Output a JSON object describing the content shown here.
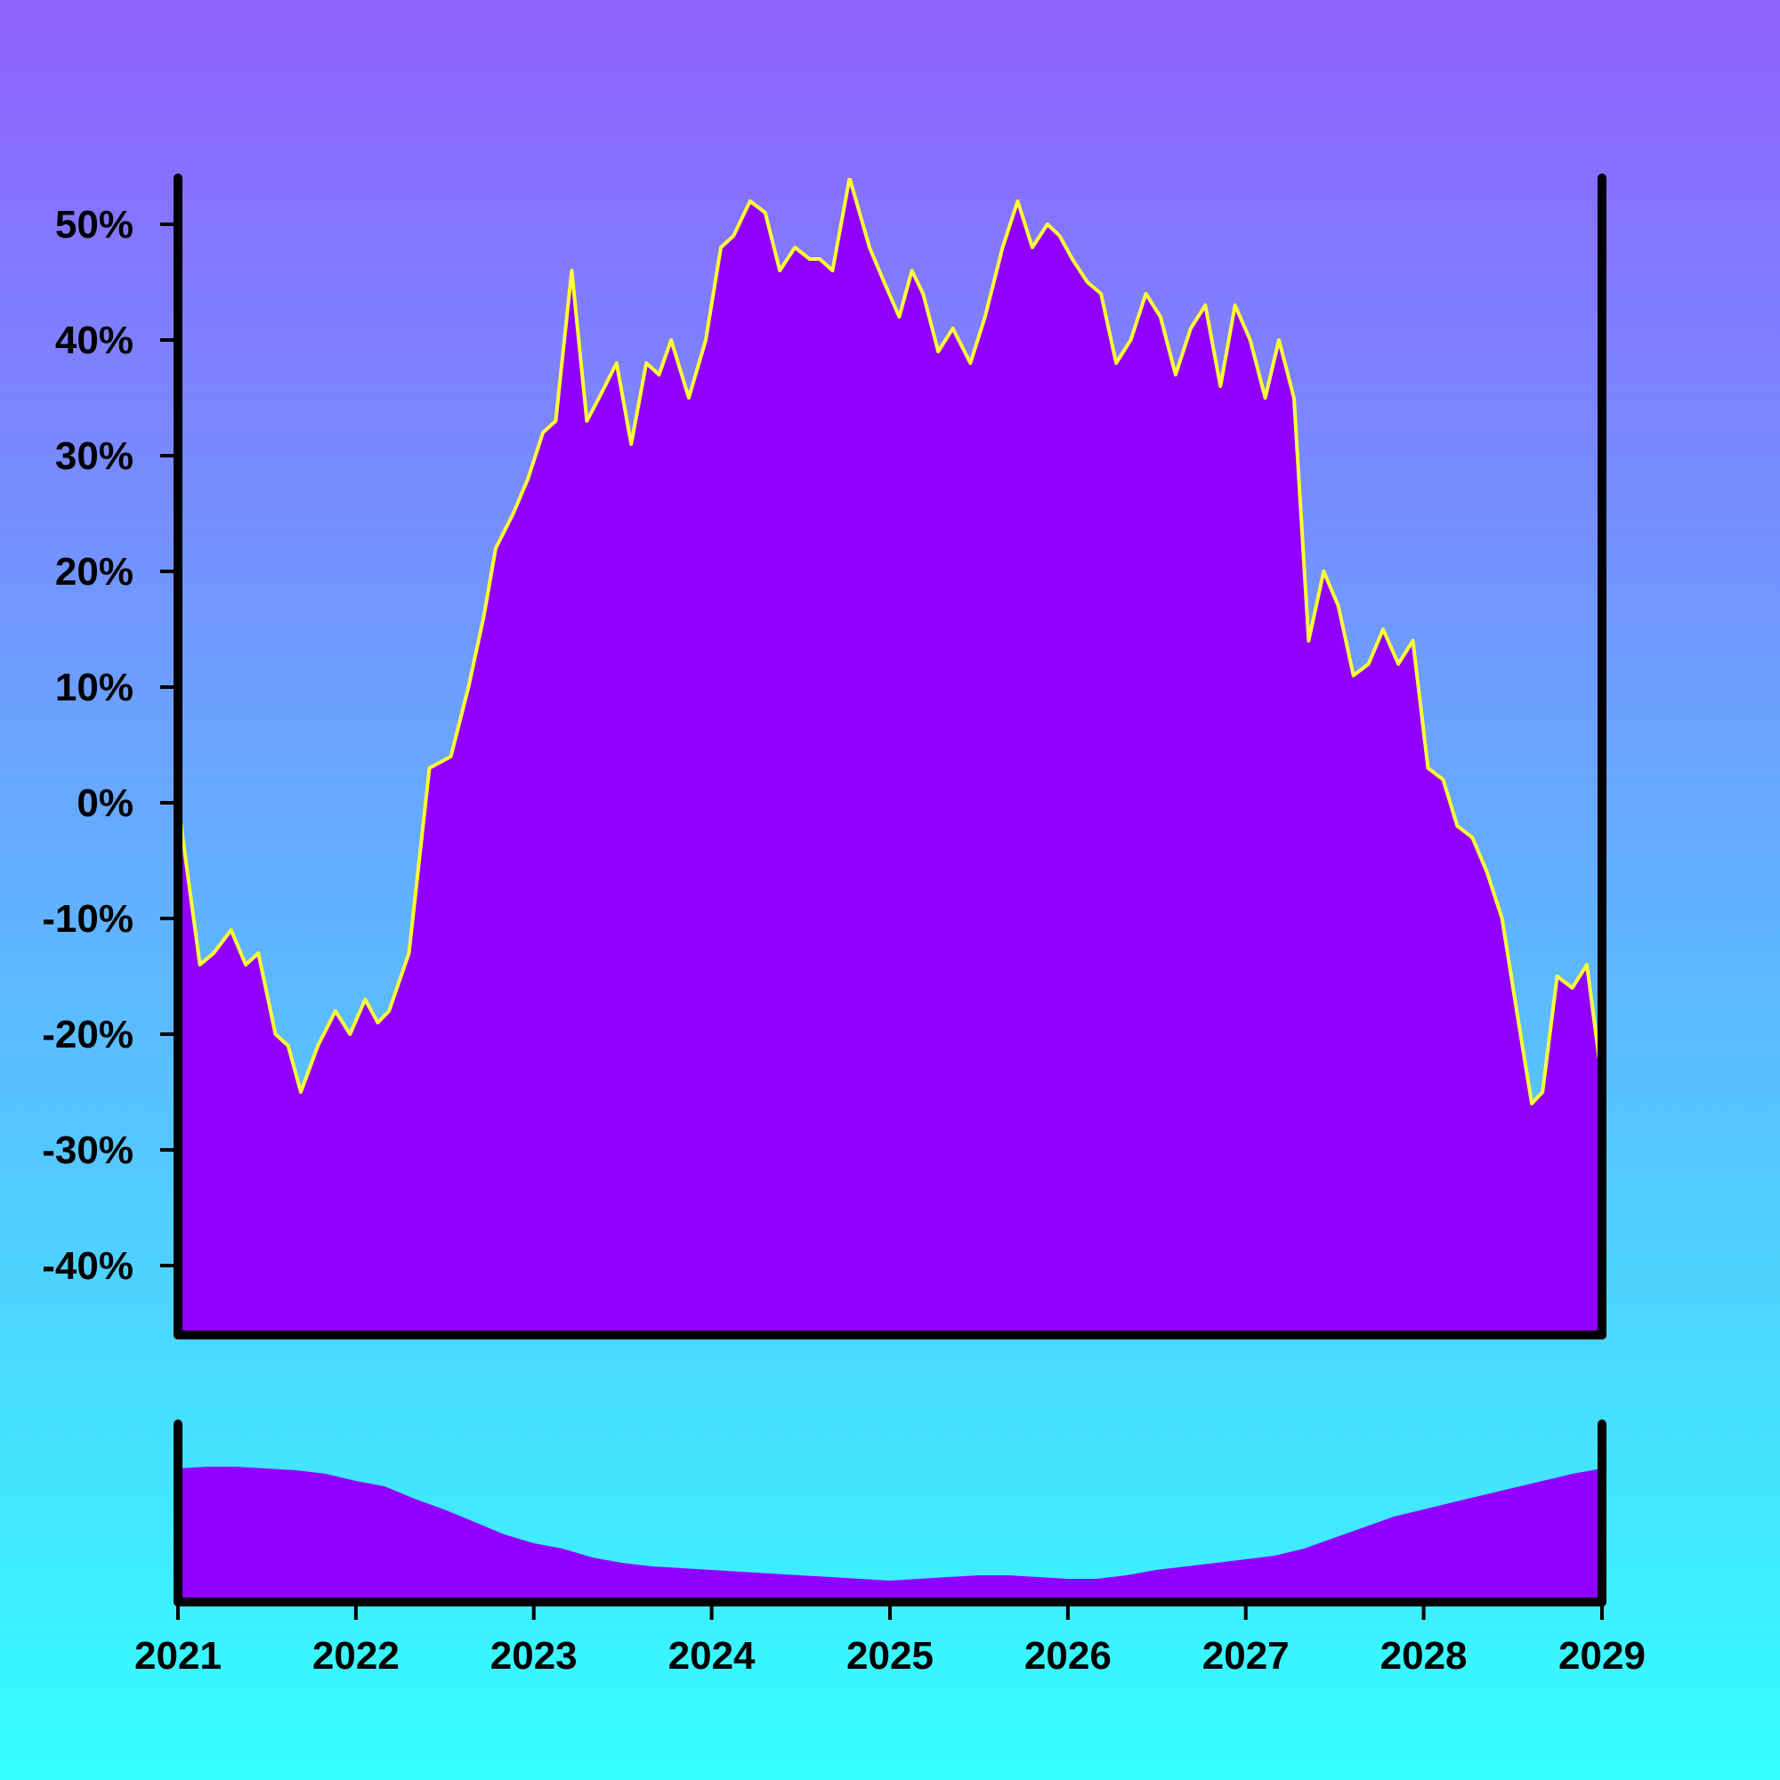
{
  "colors": {
    "background_top": "#9061ff",
    "background_bottom": "#33ffff",
    "area_fill": "#9100ff",
    "line": "#ffff33",
    "volume_fill": "#9100ff",
    "axis": "#000000"
  },
  "chart_data": {
    "type": "area",
    "title": "",
    "xlabel": "",
    "ylabel": "",
    "x_range": [
      "2021-01-01",
      "2029-01-01"
    ],
    "ylim": [
      -46,
      54
    ],
    "y_ticks": [
      50,
      40,
      30,
      20,
      10,
      0,
      -10,
      -20,
      -30,
      -40
    ],
    "y_tick_labels": [
      "50%",
      "40%",
      "30%",
      "20%",
      "10%",
      "0%",
      "-10%",
      "-20%",
      "-30%",
      "-40%"
    ],
    "x_ticks": [
      "2021",
      "2022",
      "2023",
      "2024",
      "2025",
      "2026",
      "2027",
      "2028",
      "2029"
    ],
    "grid": false,
    "legend": "none",
    "series": [
      {
        "dates": [
          "2021-01-01",
          "2021-02-15",
          "2021-03-15",
          "2021-04-20",
          "2021-05-20",
          "2021-06-15",
          "2021-07-20",
          "2021-08-15",
          "2021-09-10",
          "2021-10-15",
          "2021-11-20",
          "2021-12-20",
          "2022-01-20",
          "2022-02-15",
          "2022-03-10",
          "2022-04-20",
          "2022-06-01",
          "2022-07-15",
          "2022-08-20",
          "2022-09-20",
          "2022-10-15",
          "2022-11-20",
          "2022-12-20",
          "2023-01-20",
          "2023-02-15",
          "2023-03-20",
          "2023-04-20",
          "2023-05-15",
          "2023-06-20",
          "2023-07-20",
          "2023-08-20",
          "2023-09-15",
          "2023-10-10",
          "2023-11-15",
          "2023-12-20",
          "2024-01-20",
          "2024-02-15",
          "2024-03-20",
          "2024-04-20",
          "2024-05-20",
          "2024-06-20",
          "2024-07-20",
          "2024-08-10",
          "2024-09-05",
          "2024-10-10",
          "2024-11-20",
          "2024-12-20",
          "2025-01-20",
          "2025-02-15",
          "2025-03-10",
          "2025-04-10",
          "2025-05-10",
          "2025-06-15",
          "2025-07-15",
          "2025-08-20",
          "2025-09-20",
          "2025-10-20",
          "2025-11-20",
          "2025-12-15",
          "2026-01-10",
          "2026-02-10",
          "2026-03-10",
          "2026-04-10",
          "2026-05-10",
          "2026-06-10",
          "2026-07-10",
          "2026-08-10",
          "2026-09-10",
          "2026-10-10",
          "2026-11-10",
          "2026-12-10",
          "2027-01-10",
          "2027-02-10",
          "2027-03-10",
          "2027-04-10",
          "2027-05-10",
          "2027-06-10",
          "2027-07-10",
          "2027-08-10",
          "2027-09-10",
          "2027-10-10",
          "2027-11-10",
          "2027-12-10",
          "2028-01-10",
          "2028-02-10",
          "2028-03-10",
          "2028-04-10",
          "2028-05-10",
          "2028-06-10",
          "2028-07-10",
          "2028-08-10",
          "2028-09-01",
          "2028-10-01",
          "2028-11-01",
          "2028-12-01",
          "2029-01-01"
        ],
        "values": [
          0,
          -14,
          -13,
          -11,
          -14,
          -13,
          -20,
          -21,
          -25,
          -21,
          -18,
          -20,
          -17,
          -19,
          -18,
          -13,
          3,
          4,
          10,
          16,
          22,
          25,
          28,
          32,
          33,
          46,
          33,
          35,
          38,
          31,
          38,
          37,
          40,
          35,
          40,
          48,
          49,
          52,
          51,
          46,
          48,
          47,
          47,
          46,
          54,
          48,
          45,
          42,
          46,
          44,
          39,
          41,
          38,
          42,
          48,
          52,
          48,
          50,
          49,
          47,
          45,
          44,
          38,
          40,
          44,
          42,
          37,
          41,
          43,
          36,
          43,
          40,
          35,
          40,
          35,
          14,
          20,
          17,
          11,
          12,
          15,
          12,
          14,
          3,
          2,
          -2,
          -3,
          -6,
          -10,
          -18,
          -26,
          -25,
          -15,
          -16,
          -14,
          -24
        ]
      }
    ],
    "volume": {
      "ylim": [
        0,
        10
      ],
      "dates": [
        "2021-01-01",
        "2021-03-01",
        "2021-05-01",
        "2021-07-01",
        "2021-09-01",
        "2021-11-01",
        "2022-01-01",
        "2022-03-01",
        "2022-05-01",
        "2022-07-01",
        "2022-09-01",
        "2022-11-01",
        "2023-01-01",
        "2023-03-01",
        "2023-05-01",
        "2023-07-01",
        "2023-09-01",
        "2023-11-01",
        "2024-01-01",
        "2024-03-01",
        "2024-05-01",
        "2024-07-01",
        "2024-09-01",
        "2024-11-01",
        "2025-01-01",
        "2025-03-01",
        "2025-05-01",
        "2025-07-01",
        "2025-09-01",
        "2025-11-01",
        "2026-01-01",
        "2026-03-01",
        "2026-05-01",
        "2026-07-01",
        "2026-09-01",
        "2026-11-01",
        "2027-01-01",
        "2027-03-01",
        "2027-05-01",
        "2027-07-01",
        "2027-09-01",
        "2027-11-01",
        "2028-01-01",
        "2028-03-01",
        "2028-05-01",
        "2028-07-01",
        "2028-09-01",
        "2028-11-01",
        "2029-01-01"
      ],
      "values": [
        7.5,
        7.6,
        7.6,
        7.5,
        7.4,
        7.2,
        6.8,
        6.5,
        5.8,
        5.2,
        4.5,
        3.8,
        3.3,
        3.0,
        2.5,
        2.2,
        2.0,
        1.9,
        1.8,
        1.7,
        1.6,
        1.5,
        1.4,
        1.3,
        1.2,
        1.3,
        1.4,
        1.5,
        1.5,
        1.4,
        1.3,
        1.3,
        1.5,
        1.8,
        2.0,
        2.2,
        2.4,
        2.6,
        3.0,
        3.6,
        4.2,
        4.8,
        5.2,
        5.6,
        6.0,
        6.4,
        6.8,
        7.2,
        7.5
      ]
    }
  }
}
